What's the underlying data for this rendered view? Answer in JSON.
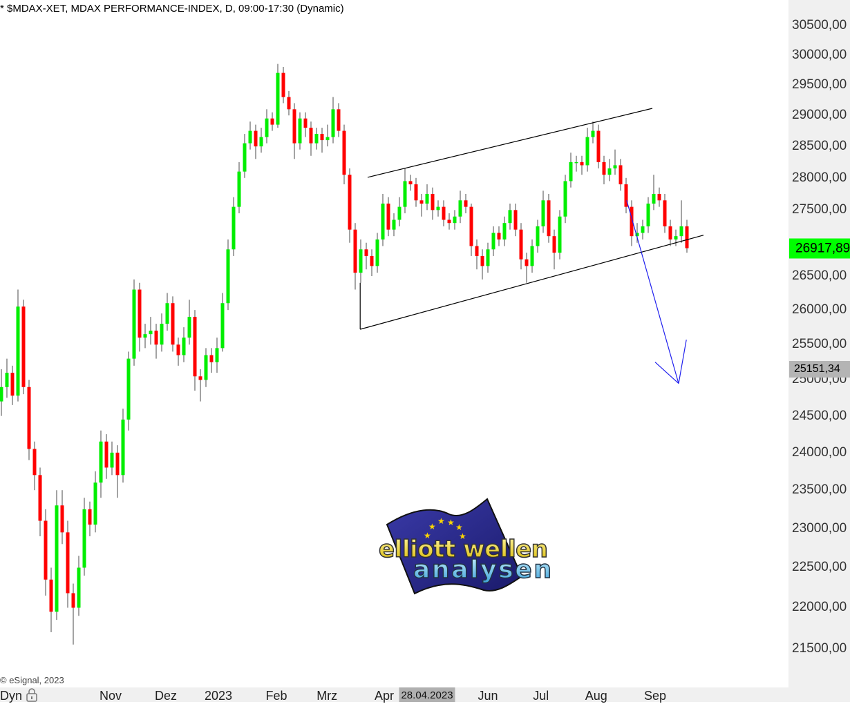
{
  "header": {
    "title": "* $MDAX-XET, MDAX PERFORMANCE-INDEX, D, 09:00-17:30 (Dynamic)"
  },
  "footer": {
    "copyright": "© eSignal, 2023",
    "mode_label": "Dyn",
    "lock_icon": "lock-icon",
    "cursor_date": "28.04.2023"
  },
  "price_labels": {
    "last": "26917,89",
    "target": "25151,34"
  },
  "colors": {
    "up": "#00ee00",
    "down": "#ff0000",
    "wick": "#666666",
    "channel": "#000000",
    "arrow": "#2020ee",
    "last_label_bg": "#00ff00",
    "target_label_bg": "#b4b4b4"
  },
  "logo": {
    "line1": "elliott wellen",
    "line2": "analysen"
  },
  "chart_data": {
    "type": "candlestick",
    "title": "* $MDAX-XET, MDAX PERFORMANCE-INDEX, D, 09:00-17:30 (Dynamic)",
    "y_scale": "log",
    "ylim": [
      21300,
      30900
    ],
    "grid": false,
    "y_ticks": [
      "30500,00",
      "30000,00",
      "29500,00",
      "29000,00",
      "28500,00",
      "28000,00",
      "27500,00",
      "26500,00",
      "26000,00",
      "25500,00",
      "25000,00",
      "24500,00",
      "24000,00",
      "23500,00",
      "23000,00",
      "22500,00",
      "22000,00",
      "21500,00"
    ],
    "y_tick_values": [
      30500,
      30000,
      29500,
      29000,
      28500,
      28000,
      27500,
      26500,
      26000,
      25500,
      25000,
      24500,
      24000,
      23500,
      23000,
      22500,
      22000,
      21500
    ],
    "x_ticks": [
      {
        "label": "Nov",
        "at_candle": 19.75
      },
      {
        "label": "Dez",
        "at_candle": 29.75
      },
      {
        "label": "2023",
        "at_candle": 39.25
      },
      {
        "label": "Feb",
        "at_candle": 49.75
      },
      {
        "label": "Mrz",
        "at_candle": 58.9
      },
      {
        "label": "Apr",
        "at_candle": 69.25
      },
      {
        "label": "Jun",
        "at_candle": 88
      },
      {
        "label": "Jul",
        "at_candle": 97.6
      },
      {
        "label": "Aug",
        "at_candle": 107.6
      },
      {
        "label": "Sep",
        "at_candle": 118.25
      }
    ],
    "cursor_date_at_candle": 77,
    "last_price": 26917.89,
    "target_price": 25151.34,
    "ohlc": [
      [
        24700,
        25150,
        24500,
        24900
      ],
      [
        24900,
        25300,
        24750,
        25100
      ],
      [
        25100,
        25200,
        24650,
        24780
      ],
      [
        24780,
        26300,
        24700,
        26050
      ],
      [
        26050,
        26150,
        24800,
        24900
      ],
      [
        24900,
        25000,
        23900,
        24050
      ],
      [
        24050,
        24150,
        23500,
        23700
      ],
      [
        23700,
        23800,
        22900,
        23100
      ],
      [
        23100,
        23250,
        22150,
        22350
      ],
      [
        22350,
        22500,
        21700,
        21950
      ],
      [
        21950,
        23500,
        21850,
        23300
      ],
      [
        23300,
        23500,
        22800,
        22950
      ],
      [
        22950,
        23100,
        22000,
        22180
      ],
      [
        22180,
        22300,
        21550,
        22000
      ],
      [
        22000,
        22650,
        21900,
        22500
      ],
      [
        22500,
        23400,
        22400,
        23250
      ],
      [
        23250,
        23350,
        22900,
        23050
      ],
      [
        23050,
        23750,
        22950,
        23600
      ],
      [
        23600,
        24300,
        23400,
        24150
      ],
      [
        24150,
        24250,
        23650,
        23800
      ],
      [
        23800,
        24150,
        23700,
        24000
      ],
      [
        24000,
        24100,
        23400,
        23700
      ],
      [
        23700,
        24600,
        23600,
        24450
      ],
      [
        24450,
        25400,
        24300,
        25300
      ],
      [
        25300,
        26450,
        25200,
        26300
      ],
      [
        26300,
        26400,
        25400,
        25600
      ],
      [
        25600,
        25800,
        25450,
        25650
      ],
      [
        25650,
        25900,
        25500,
        25700
      ],
      [
        25700,
        25800,
        25300,
        25500
      ],
      [
        25500,
        25950,
        25400,
        25800
      ],
      [
        25800,
        26250,
        25700,
        26100
      ],
      [
        26100,
        26200,
        25400,
        25500
      ],
      [
        25500,
        25600,
        25200,
        25350
      ],
      [
        25350,
        25750,
        25250,
        25600
      ],
      [
        25600,
        26150,
        25500,
        25900
      ],
      [
        25900,
        26000,
        24850,
        25050
      ],
      [
        25050,
        25150,
        24700,
        25000
      ],
      [
        25000,
        25450,
        24900,
        25350
      ],
      [
        25350,
        25450,
        25100,
        25250
      ],
      [
        25250,
        25600,
        25100,
        25450
      ],
      [
        25450,
        26250,
        25400,
        26100
      ],
      [
        26100,
        27050,
        26000,
        26900
      ],
      [
        26900,
        27700,
        26800,
        27550
      ],
      [
        27550,
        28250,
        27450,
        28100
      ],
      [
        28100,
        28700,
        28000,
        28550
      ],
      [
        28550,
        28900,
        28450,
        28750
      ],
      [
        28750,
        28850,
        28300,
        28500
      ],
      [
        28500,
        28800,
        28400,
        28650
      ],
      [
        28650,
        29100,
        28550,
        28950
      ],
      [
        28950,
        29050,
        28750,
        28850
      ],
      [
        28850,
        29850,
        28800,
        29700
      ],
      [
        29700,
        29800,
        29200,
        29300
      ],
      [
        29300,
        29400,
        29000,
        29100
      ],
      [
        29100,
        29200,
        28300,
        28550
      ],
      [
        28550,
        29050,
        28450,
        28950
      ],
      [
        28950,
        29050,
        28650,
        28800
      ],
      [
        28800,
        28900,
        28350,
        28550
      ],
      [
        28550,
        28800,
        28450,
        28700
      ],
      [
        28700,
        28800,
        28400,
        28600
      ],
      [
        28600,
        28850,
        28500,
        28650
      ],
      [
        28650,
        29300,
        28550,
        29100
      ],
      [
        29100,
        29200,
        28650,
        28750
      ],
      [
        28750,
        28850,
        27900,
        28050
      ],
      [
        28050,
        28150,
        27000,
        27200
      ],
      [
        27200,
        27300,
        26300,
        26550
      ],
      [
        26550,
        27050,
        26400,
        26900
      ],
      [
        26900,
        27000,
        26600,
        26800
      ],
      [
        26800,
        26900,
        26500,
        26650
      ],
      [
        26650,
        27150,
        26550,
        27050
      ],
      [
        27050,
        27750,
        26950,
        27600
      ],
      [
        27600,
        27700,
        27100,
        27200
      ],
      [
        27200,
        27450,
        27100,
        27350
      ],
      [
        27350,
        27700,
        27250,
        27550
      ],
      [
        27550,
        28150,
        27450,
        27950
      ],
      [
        27950,
        28050,
        27800,
        27900
      ],
      [
        27900,
        28000,
        27550,
        27650
      ],
      [
        27650,
        27750,
        27400,
        27600
      ],
      [
        27600,
        27900,
        27500,
        27750
      ],
      [
        27750,
        27850,
        27350,
        27500
      ],
      [
        27500,
        27650,
        27400,
        27550
      ],
      [
        27550,
        27650,
        27250,
        27350
      ],
      [
        27350,
        27450,
        27200,
        27300
      ],
      [
        27300,
        27500,
        27200,
        27400
      ],
      [
        27400,
        27800,
        27300,
        27650
      ],
      [
        27650,
        27750,
        27450,
        27550
      ],
      [
        27550,
        27600,
        26800,
        26950
      ],
      [
        26950,
        27050,
        26600,
        26800
      ],
      [
        26800,
        26900,
        26450,
        26650
      ],
      [
        26650,
        27000,
        26550,
        26900
      ],
      [
        26900,
        27250,
        26800,
        27150
      ],
      [
        27150,
        27250,
        26950,
        27050
      ],
      [
        27050,
        27400,
        26950,
        27300
      ],
      [
        27300,
        27600,
        27200,
        27500
      ],
      [
        27500,
        27600,
        27100,
        27200
      ],
      [
        27200,
        27300,
        26600,
        26750
      ],
      [
        26750,
        26850,
        26400,
        26650
      ],
      [
        26650,
        27050,
        26550,
        26950
      ],
      [
        26950,
        27350,
        26850,
        27250
      ],
      [
        27250,
        27800,
        27150,
        27650
      ],
      [
        27650,
        27750,
        27000,
        27100
      ],
      [
        27100,
        27200,
        26600,
        26850
      ],
      [
        26850,
        27500,
        26750,
        27400
      ],
      [
        27400,
        28050,
        27300,
        27950
      ],
      [
        27950,
        28400,
        27850,
        28250
      ],
      [
        28250,
        28350,
        28100,
        28250
      ],
      [
        28250,
        28350,
        28050,
        28200
      ],
      [
        28200,
        28800,
        28100,
        28650
      ],
      [
        28650,
        28900,
        28550,
        28750
      ],
      [
        28750,
        28850,
        28150,
        28250
      ],
      [
        28250,
        28350,
        27900,
        28050
      ],
      [
        28050,
        28300,
        27950,
        28150
      ],
      [
        28150,
        28450,
        28050,
        28200
      ],
      [
        28200,
        28300,
        27800,
        27900
      ],
      [
        27900,
        28000,
        27450,
        27550
      ],
      [
        27550,
        27650,
        26950,
        27100
      ],
      [
        27100,
        27300,
        27000,
        27150
      ],
      [
        27150,
        27350,
        27050,
        27250
      ],
      [
        27250,
        27700,
        27150,
        27600
      ],
      [
        27600,
        28050,
        27500,
        27750
      ],
      [
        27750,
        27850,
        27550,
        27650
      ],
      [
        27650,
        27750,
        27150,
        27250
      ],
      [
        27250,
        27350,
        26950,
        27050
      ],
      [
        27050,
        27200,
        26950,
        27100
      ],
      [
        27100,
        27650,
        27000,
        27250
      ],
      [
        27250,
        27350,
        26850,
        26918
      ]
    ],
    "annotations": [
      {
        "type": "trendline",
        "name": "channel-upper",
        "from": [
          66.25,
          28010
        ],
        "to": [
          117.75,
          29115
        ]
      },
      {
        "type": "trendline",
        "name": "channel-lower",
        "from": [
          64.9,
          25720
        ],
        "to": [
          127,
          27115
        ]
      },
      {
        "type": "vertical",
        "name": "channel-start",
        "from": [
          64.9,
          26400
        ],
        "to": [
          64.9,
          25720
        ]
      },
      {
        "type": "arrow-line",
        "name": "projection",
        "from": [
          113.1,
          27650
        ],
        "to": [
          122.5,
          24950
        ]
      },
      {
        "type": "arrow-line",
        "name": "arrow-head-right",
        "from": [
          122.5,
          24950
        ],
        "to": [
          123.9,
          25570
        ]
      },
      {
        "type": "arrow-line",
        "name": "arrow-head-left",
        "from": [
          118.25,
          25250
        ],
        "to": [
          122.5,
          24950
        ]
      }
    ]
  }
}
